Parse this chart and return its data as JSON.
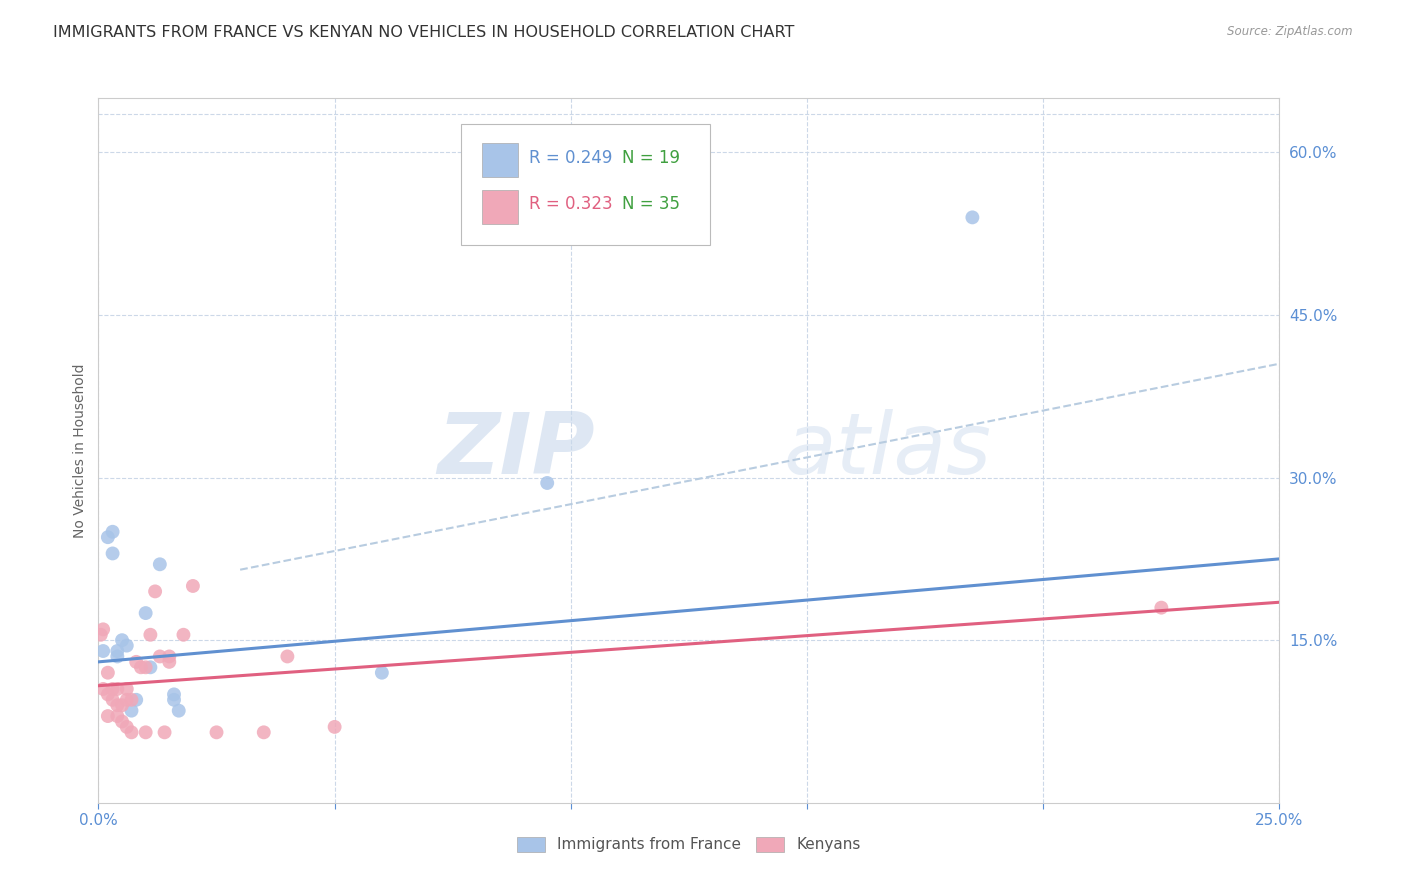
{
  "title": "IMMIGRANTS FROM FRANCE VS KENYAN NO VEHICLES IN HOUSEHOLD CORRELATION CHART",
  "source": "Source: ZipAtlas.com",
  "ylabel": "No Vehicles in Household",
  "legend_blue_R": "R = 0.249",
  "legend_blue_N": "N = 19",
  "legend_pink_R": "R = 0.323",
  "legend_pink_N": "N = 35",
  "legend_label_blue": "Immigrants from France",
  "legend_label_pink": "Kenyans",
  "blue_color": "#a8c4e8",
  "pink_color": "#f0a8b8",
  "blue_line_color": "#6090d0",
  "pink_line_color": "#e06080",
  "dashed_line_color": "#b8cce0",
  "watermark_zip": "ZIP",
  "watermark_atlas": "atlas",
  "blue_scatter_x": [
    0.001,
    0.002,
    0.003,
    0.003,
    0.004,
    0.004,
    0.005,
    0.006,
    0.007,
    0.008,
    0.01,
    0.011,
    0.013,
    0.016,
    0.016,
    0.017,
    0.06,
    0.095,
    0.185
  ],
  "blue_scatter_y": [
    0.14,
    0.245,
    0.23,
    0.25,
    0.135,
    0.14,
    0.15,
    0.145,
    0.085,
    0.095,
    0.175,
    0.125,
    0.22,
    0.095,
    0.1,
    0.085,
    0.12,
    0.295,
    0.54
  ],
  "pink_scatter_x": [
    0.0005,
    0.001,
    0.001,
    0.002,
    0.002,
    0.002,
    0.003,
    0.003,
    0.004,
    0.004,
    0.004,
    0.005,
    0.005,
    0.006,
    0.006,
    0.006,
    0.007,
    0.007,
    0.008,
    0.009,
    0.01,
    0.01,
    0.011,
    0.012,
    0.013,
    0.014,
    0.015,
    0.015,
    0.018,
    0.02,
    0.025,
    0.035,
    0.04,
    0.05,
    0.225
  ],
  "pink_scatter_y": [
    0.155,
    0.16,
    0.105,
    0.12,
    0.1,
    0.08,
    0.095,
    0.105,
    0.105,
    0.09,
    0.08,
    0.09,
    0.075,
    0.105,
    0.095,
    0.07,
    0.095,
    0.065,
    0.13,
    0.125,
    0.125,
    0.065,
    0.155,
    0.195,
    0.135,
    0.065,
    0.135,
    0.13,
    0.155,
    0.2,
    0.065,
    0.065,
    0.135,
    0.07,
    0.18
  ],
  "blue_trendline_x": [
    0.0,
    0.25
  ],
  "blue_trendline_y": [
    0.13,
    0.225
  ],
  "pink_trendline_x": [
    0.0,
    0.25
  ],
  "pink_trendline_y": [
    0.108,
    0.185
  ],
  "dashed_trendline_x": [
    0.03,
    0.25
  ],
  "dashed_trendline_y": [
    0.215,
    0.405
  ],
  "xlim": [
    0.0,
    0.25
  ],
  "ylim": [
    0.0,
    0.65
  ],
  "xticks": [
    0.0,
    0.05,
    0.1,
    0.15,
    0.2,
    0.25
  ],
  "yticks_right": [
    0.15,
    0.3,
    0.45,
    0.6
  ],
  "background_color": "#ffffff",
  "grid_color": "#ccd8e8",
  "title_fontsize": 11.5,
  "axis_label_fontsize": 10,
  "tick_label_fontsize": 11,
  "scatter_size": 100,
  "r_color_blue": "#6090d0",
  "r_color_pink": "#e06080",
  "n_color": "#40a040"
}
